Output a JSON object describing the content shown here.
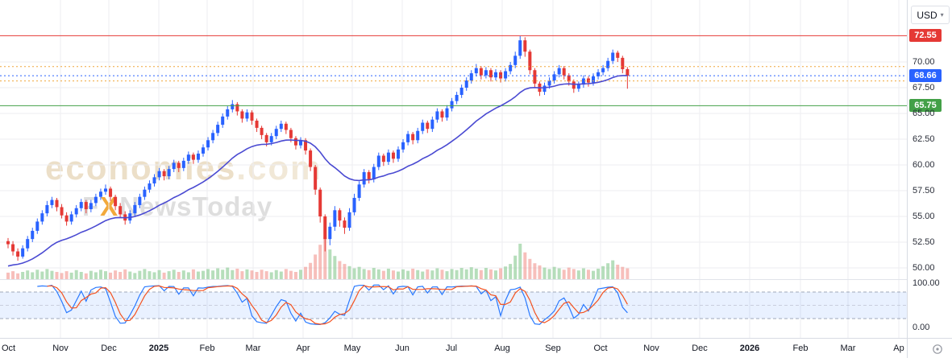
{
  "toolbar": {
    "currency_label": "USD"
  },
  "icons": {
    "chevron_down": "▾"
  },
  "watermark": {
    "brand": "economies",
    "brand_suffix": ".com",
    "news_prefix": "F",
    "news_x": "X",
    "news_rest": "NewsToday"
  },
  "price_axis": {
    "tags": [
      {
        "label": "72.55",
        "value": 72.55,
        "color": "#e53935",
        "name": "resistance"
      },
      {
        "label": "68.66",
        "value": 68.66,
        "color": "#2962ff",
        "name": "last-price"
      },
      {
        "label": "65.75",
        "value": 65.75,
        "color": "#43a047",
        "name": "support"
      }
    ]
  },
  "indicator_axis": {
    "labels": [
      "100.00",
      "0.00"
    ]
  },
  "chart_data": {
    "type": "candlestick",
    "currency": "USD",
    "x_axis": {
      "labels": [
        {
          "text": "Oct"
        },
        {
          "text": "Nov"
        },
        {
          "text": "Dec"
        },
        {
          "text": "2025",
          "bold": true
        },
        {
          "text": "Feb"
        },
        {
          "text": "Mar"
        },
        {
          "text": "Apr"
        },
        {
          "text": "May"
        },
        {
          "text": "Jun"
        },
        {
          "text": "Jul"
        },
        {
          "text": "Aug"
        },
        {
          "text": "Sep"
        },
        {
          "text": "Oct"
        },
        {
          "text": "Nov"
        },
        {
          "text": "Dec"
        },
        {
          "text": "2026",
          "bold": true
        },
        {
          "text": "Feb"
        },
        {
          "text": "Mar"
        },
        {
          "text": "Ap"
        }
      ]
    },
    "y_axis": {
      "ticks": [
        70.0,
        67.5,
        65.0,
        62.5,
        60.0,
        57.5,
        55.0,
        52.5,
        50.0
      ],
      "visible_range": [
        49.5,
        73.5
      ]
    },
    "price_marks": [
      72.55,
      68.66,
      65.75
    ],
    "levels": [
      {
        "value": 72.55,
        "color": "#e53935",
        "style": "solid",
        "name": "resistance"
      },
      {
        "value": 69.55,
        "color": "#f0a63c",
        "style": "dotted",
        "name": "pivot-high"
      },
      {
        "value": 68.66,
        "color": "#2962ff",
        "style": "dotted",
        "name": "last-price"
      },
      {
        "value": 68.15,
        "color": "#f0a63c",
        "style": "dotted",
        "name": "pivot-low"
      },
      {
        "value": 65.75,
        "color": "#43a047",
        "style": "solid",
        "name": "support"
      }
    ],
    "overlays": {
      "ma": {
        "kind": "EMA",
        "period": 25,
        "color": "#4a4ad2"
      }
    },
    "lower_indicator": {
      "kind": "stochastic",
      "k_period": 7,
      "d_period": 3,
      "overbought": 80,
      "oversold": 20,
      "midline": 50,
      "k_color": "#2979ff",
      "d_color": "#f4511e",
      "band_color": "rgba(41,121,255,0.10)"
    },
    "colors": {
      "up": "#2962ff",
      "down": "#e53935",
      "vol_up": "rgba(110,190,120,0.5)",
      "vol_down": "rgba(240,128,120,0.5)",
      "grid": "#ededf0"
    },
    "candles": [
      [
        52.6,
        52.9,
        51.9,
        52.3
      ],
      [
        52.3,
        52.6,
        51.2,
        51.6
      ],
      [
        51.6,
        51.9,
        50.7,
        51.1
      ],
      [
        51.1,
        52.2,
        50.9,
        51.9
      ],
      [
        51.9,
        53.1,
        51.6,
        52.8
      ],
      [
        52.8,
        53.9,
        52.5,
        53.6
      ],
      [
        53.6,
        54.8,
        53.3,
        54.5
      ],
      [
        54.5,
        55.6,
        54.2,
        55.3
      ],
      [
        55.3,
        56.5,
        55.0,
        56.1
      ],
      [
        56.1,
        56.9,
        55.8,
        56.6
      ],
      [
        56.6,
        56.8,
        55.5,
        55.9
      ],
      [
        55.9,
        56.2,
        54.8,
        55.1
      ],
      [
        55.1,
        55.4,
        54.1,
        54.5
      ],
      [
        54.5,
        55.5,
        54.2,
        55.2
      ],
      [
        55.2,
        56.1,
        54.9,
        55.8
      ],
      [
        55.8,
        56.7,
        55.5,
        56.4
      ],
      [
        56.4,
        56.6,
        55.3,
        55.7
      ],
      [
        55.7,
        56.6,
        55.4,
        56.3
      ],
      [
        56.3,
        57.2,
        56.0,
        56.9
      ],
      [
        56.9,
        57.7,
        56.6,
        57.4
      ],
      [
        57.4,
        58.1,
        57.1,
        57.7
      ],
      [
        57.7,
        57.9,
        56.5,
        56.9
      ],
      [
        56.9,
        57.1,
        55.6,
        56.0
      ],
      [
        56.0,
        56.3,
        54.9,
        55.2
      ],
      [
        55.2,
        55.5,
        54.2,
        54.6
      ],
      [
        54.6,
        55.6,
        54.3,
        55.3
      ],
      [
        55.3,
        56.4,
        55.0,
        56.1
      ],
      [
        56.1,
        57.2,
        55.8,
        56.9
      ],
      [
        56.9,
        57.9,
        56.6,
        57.6
      ],
      [
        57.6,
        58.5,
        57.3,
        58.2
      ],
      [
        58.2,
        59.1,
        57.9,
        58.8
      ],
      [
        58.8,
        59.7,
        58.5,
        59.4
      ],
      [
        59.4,
        59.6,
        58.5,
        58.9
      ],
      [
        58.9,
        59.9,
        58.6,
        59.6
      ],
      [
        59.6,
        60.5,
        59.3,
        60.2
      ],
      [
        60.2,
        60.4,
        59.3,
        59.7
      ],
      [
        59.7,
        60.7,
        59.4,
        60.4
      ],
      [
        60.4,
        61.3,
        60.1,
        61.0
      ],
      [
        61.0,
        61.2,
        60.1,
        60.5
      ],
      [
        60.5,
        61.4,
        60.2,
        61.1
      ],
      [
        61.1,
        62.0,
        60.8,
        61.7
      ],
      [
        61.7,
        62.7,
        61.4,
        62.4
      ],
      [
        62.4,
        63.4,
        62.1,
        63.1
      ],
      [
        63.1,
        64.2,
        62.8,
        63.9
      ],
      [
        63.9,
        65.0,
        63.6,
        64.7
      ],
      [
        64.7,
        65.7,
        64.4,
        65.4
      ],
      [
        65.4,
        66.3,
        65.1,
        65.9
      ],
      [
        65.9,
        66.1,
        64.8,
        65.2
      ],
      [
        65.2,
        65.4,
        64.1,
        64.5
      ],
      [
        64.5,
        65.4,
        64.2,
        65.1
      ],
      [
        65.1,
        65.3,
        63.9,
        64.3
      ],
      [
        64.3,
        64.5,
        63.2,
        63.6
      ],
      [
        63.6,
        63.8,
        62.5,
        62.9
      ],
      [
        62.9,
        63.1,
        61.8,
        62.2
      ],
      [
        62.2,
        63.1,
        61.9,
        62.8
      ],
      [
        62.8,
        63.8,
        62.5,
        63.5
      ],
      [
        63.5,
        64.3,
        63.2,
        64.0
      ],
      [
        64.0,
        64.2,
        63.0,
        63.4
      ],
      [
        63.4,
        63.6,
        62.2,
        62.6
      ],
      [
        62.6,
        62.8,
        61.5,
        61.9
      ],
      [
        61.9,
        62.7,
        61.6,
        62.4
      ],
      [
        62.4,
        62.6,
        61.0,
        61.4
      ],
      [
        61.4,
        61.6,
        59.4,
        59.8
      ],
      [
        59.8,
        60.0,
        57.1,
        57.6
      ],
      [
        57.6,
        57.8,
        54.4,
        55.0
      ],
      [
        55.0,
        55.2,
        51.6,
        52.8
      ],
      [
        52.8,
        54.4,
        52.2,
        54.0
      ],
      [
        54.0,
        56.0,
        53.6,
        55.6
      ],
      [
        55.6,
        55.8,
        54.0,
        54.6
      ],
      [
        54.6,
        54.9,
        53.3,
        53.9
      ],
      [
        53.9,
        55.8,
        53.6,
        55.4
      ],
      [
        55.4,
        57.2,
        55.1,
        56.8
      ],
      [
        56.8,
        58.4,
        56.5,
        58.1
      ],
      [
        58.1,
        59.6,
        57.8,
        59.3
      ],
      [
        59.3,
        59.5,
        58.2,
        58.6
      ],
      [
        58.6,
        60.1,
        58.3,
        59.8
      ],
      [
        59.8,
        61.2,
        59.5,
        60.9
      ],
      [
        60.9,
        61.1,
        59.9,
        60.3
      ],
      [
        60.3,
        61.5,
        60.0,
        61.2
      ],
      [
        61.2,
        61.4,
        60.2,
        60.6
      ],
      [
        60.6,
        61.8,
        60.3,
        61.5
      ],
      [
        61.5,
        62.5,
        61.2,
        62.2
      ],
      [
        62.2,
        63.3,
        61.9,
        63.0
      ],
      [
        63.0,
        63.2,
        62.0,
        62.4
      ],
      [
        62.4,
        63.6,
        62.1,
        63.3
      ],
      [
        63.3,
        64.4,
        63.0,
        64.1
      ],
      [
        64.1,
        64.3,
        63.1,
        63.5
      ],
      [
        63.5,
        64.7,
        63.2,
        64.4
      ],
      [
        64.4,
        65.5,
        64.1,
        65.2
      ],
      [
        65.2,
        65.4,
        64.2,
        64.6
      ],
      [
        64.6,
        65.8,
        64.3,
        65.5
      ],
      [
        65.5,
        66.5,
        65.2,
        66.2
      ],
      [
        66.2,
        67.1,
        65.9,
        66.8
      ],
      [
        66.8,
        67.8,
        66.5,
        67.5
      ],
      [
        67.5,
        68.5,
        67.2,
        68.2
      ],
      [
        68.2,
        69.2,
        67.9,
        68.9
      ],
      [
        68.9,
        69.8,
        68.6,
        69.4
      ],
      [
        69.4,
        69.6,
        68.3,
        68.7
      ],
      [
        68.7,
        69.5,
        68.4,
        69.2
      ],
      [
        69.2,
        69.4,
        68.1,
        68.5
      ],
      [
        68.5,
        69.3,
        68.2,
        69.0
      ],
      [
        69.0,
        69.2,
        68.0,
        68.4
      ],
      [
        68.4,
        69.4,
        68.1,
        69.1
      ],
      [
        69.1,
        70.0,
        68.8,
        69.7
      ],
      [
        69.7,
        71.0,
        69.4,
        70.6
      ],
      [
        70.6,
        72.5,
        70.3,
        72.1
      ],
      [
        72.1,
        72.4,
        70.5,
        71.0
      ],
      [
        71.0,
        71.2,
        68.8,
        69.2
      ],
      [
        69.2,
        69.4,
        67.5,
        67.9
      ],
      [
        67.9,
        68.1,
        66.7,
        67.1
      ],
      [
        67.1,
        68.0,
        66.8,
        67.7
      ],
      [
        67.7,
        68.5,
        67.4,
        68.2
      ],
      [
        68.2,
        69.1,
        67.9,
        68.8
      ],
      [
        68.8,
        69.7,
        68.5,
        69.4
      ],
      [
        69.4,
        69.6,
        68.3,
        68.7
      ],
      [
        68.7,
        68.9,
        67.7,
        68.1
      ],
      [
        68.1,
        68.3,
        67.0,
        67.4
      ],
      [
        67.4,
        68.1,
        67.1,
        67.8
      ],
      [
        67.8,
        68.7,
        67.5,
        68.4
      ],
      [
        68.4,
        68.6,
        67.6,
        68.0
      ],
      [
        68.0,
        68.9,
        67.7,
        68.6
      ],
      [
        68.6,
        69.3,
        68.3,
        69.0
      ],
      [
        69.0,
        69.7,
        68.7,
        69.4
      ],
      [
        69.4,
        70.4,
        69.1,
        70.1
      ],
      [
        70.1,
        71.2,
        69.8,
        70.9
      ],
      [
        70.9,
        71.1,
        70.0,
        70.4
      ],
      [
        70.4,
        70.6,
        68.9,
        69.3
      ],
      [
        69.3,
        69.5,
        67.4,
        68.66
      ]
    ],
    "volumes": [
      1.8,
      2.2,
      1.6,
      2.0,
      2.4,
      1.9,
      2.6,
      2.1,
      2.8,
      2.3,
      2.0,
      1.7,
      2.2,
      1.8,
      2.5,
      2.0,
      1.6,
      2.3,
      1.9,
      2.6,
      2.2,
      1.8,
      2.4,
      2.0,
      2.7,
      2.1,
      1.7,
      2.3,
      2.8,
      2.2,
      1.9,
      2.5,
      1.8,
      2.2,
      2.6,
      2.0,
      2.4,
      1.9,
      2.7,
      2.1,
      2.3,
      2.8,
      2.4,
      3.0,
      2.6,
      3.2,
      2.5,
      2.9,
      2.2,
      2.7,
      2.4,
      2.0,
      2.6,
      2.2,
      1.9,
      2.5,
      2.1,
      2.8,
      2.3,
      2.0,
      2.6,
      3.4,
      4.5,
      6.8,
      9.5,
      11.5,
      8.2,
      6.4,
      5.0,
      4.2,
      3.6,
      3.0,
      3.4,
      2.8,
      2.5,
      3.1,
      2.7,
      2.3,
      2.9,
      2.4,
      2.1,
      2.7,
      2.3,
      2.9,
      2.5,
      2.1,
      2.7,
      2.4,
      3.0,
      2.6,
      2.2,
      2.8,
      2.5,
      3.1,
      2.7,
      3.3,
      2.9,
      2.5,
      3.1,
      2.7,
      2.4,
      3.0,
      3.5,
      4.2,
      6.5,
      9.8,
      7.4,
      5.6,
      4.4,
      3.8,
      3.2,
      2.8,
      3.4,
      3.0,
      2.6,
      3.2,
      2.8,
      2.4,
      3.0,
      2.6,
      2.3,
      2.9,
      3.6,
      4.4,
      5.2,
      4.0,
      3.4,
      3.0
    ]
  }
}
